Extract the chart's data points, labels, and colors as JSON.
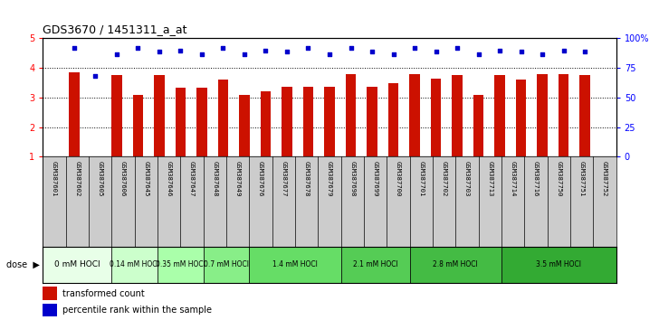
{
  "title": "GDS3670 / 1451311_a_at",
  "samples": [
    "GSM387601",
    "GSM387602",
    "GSM387605",
    "GSM387606",
    "GSM387645",
    "GSM387646",
    "GSM387647",
    "GSM387648",
    "GSM387649",
    "GSM387676",
    "GSM387677",
    "GSM387678",
    "GSM387679",
    "GSM387698",
    "GSM387699",
    "GSM387700",
    "GSM387701",
    "GSM387702",
    "GSM387703",
    "GSM387713",
    "GSM387714",
    "GSM387716",
    "GSM387750",
    "GSM387751",
    "GSM387752"
  ],
  "bar_values": [
    3.85,
    1.02,
    3.75,
    3.1,
    3.75,
    3.35,
    3.35,
    3.6,
    3.1,
    3.2,
    3.38,
    3.38,
    3.38,
    3.78,
    3.38,
    3.48,
    3.78,
    3.65,
    3.75,
    3.08,
    3.75,
    3.62,
    3.78,
    3.78,
    3.75
  ],
  "percentile_values": [
    4.67,
    3.72,
    4.45,
    4.67,
    4.55,
    4.6,
    4.45,
    4.67,
    4.45,
    4.6,
    4.55,
    4.67,
    4.45,
    4.67,
    4.55,
    4.45,
    4.67,
    4.55,
    4.67,
    4.45,
    4.6,
    4.55,
    4.45,
    4.6,
    4.55
  ],
  "bar_color": "#cc1100",
  "dot_color": "#0000cc",
  "ylim": [
    1,
    5
  ],
  "yticks": [
    1,
    2,
    3,
    4,
    5
  ],
  "yright_ticks": [
    0,
    25,
    50,
    75,
    100
  ],
  "dose_groups": [
    {
      "label": "0 mM HOCl",
      "start": 0,
      "end": 3,
      "color": "#e8ffe8"
    },
    {
      "label": "0.14 mM HOCl",
      "start": 3,
      "end": 5,
      "color": "#ccffcc"
    },
    {
      "label": "0.35 mM HOCl",
      "start": 5,
      "end": 7,
      "color": "#aaffaa"
    },
    {
      "label": "0.7 mM HOCl",
      "start": 7,
      "end": 9,
      "color": "#88ee88"
    },
    {
      "label": "1.4 mM HOCl",
      "start": 9,
      "end": 13,
      "color": "#66dd66"
    },
    {
      "label": "2.1 mM HOCl",
      "start": 13,
      "end": 16,
      "color": "#55cc55"
    },
    {
      "label": "2.8 mM HOCl",
      "start": 16,
      "end": 20,
      "color": "#44bb44"
    },
    {
      "label": "3.5 mM HOCl",
      "start": 20,
      "end": 25,
      "color": "#33aa33"
    }
  ],
  "bg_color": "#ffffff",
  "xtick_bg": "#cccccc",
  "dose_label": "dose"
}
